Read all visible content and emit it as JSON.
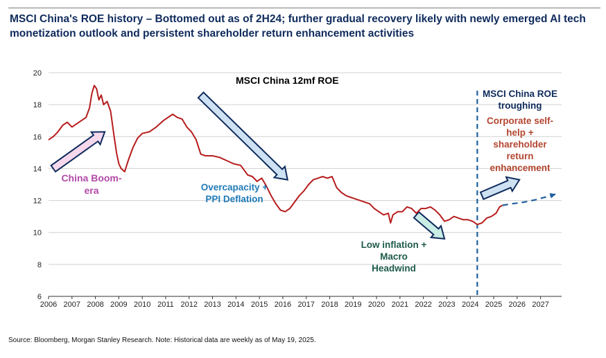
{
  "title": "MSCI China's ROE history – Bottomed out as of 2H24; further gradual recovery likely with newly emerged AI tech monetization outlook and persistent shareholder return enhancement activities",
  "source": "Source: Bloomberg, Morgan Stanley Research. Note: Historical data are weekly as of May 19, 2025.",
  "colors": {
    "line": "#b71c1c",
    "grid": "#d0d0d0",
    "title": "#0f2b5c",
    "projection": "#1f5f9e",
    "arrow_dark_fill": "#cfe2f3",
    "arrow_pink_fill": "#f6d8ec",
    "arrow_teal_fill": "#c9ece5"
  },
  "annotations": {
    "chart_title": "MSCI China 12mf ROE",
    "china_boom": "China Boom-era",
    "overcapacity": "Overcapacity + PPI Deflation",
    "low_inflation": "Low inflation + Macro Headwind",
    "troughing": "MSCI China ROE troughing",
    "corporate": "Corporate self-help + shareholder return enhancement"
  },
  "chart_data": {
    "type": "line",
    "title": "MSCI China 12mf ROE",
    "xlabel": "",
    "ylabel": "",
    "xlim": [
      2006,
      2027.9
    ],
    "ylim": [
      6,
      20
    ],
    "x_ticks": [
      2006,
      2007,
      2008,
      2009,
      2010,
      2011,
      2012,
      2013,
      2014,
      2015,
      2016,
      2017,
      2018,
      2019,
      2020,
      2021,
      2022,
      2023,
      2024,
      2025,
      2026,
      2027
    ],
    "y_ticks": [
      6,
      8,
      10,
      12,
      14,
      16,
      18,
      20
    ],
    "grid": "horizontal",
    "series": [
      {
        "x": [
          2006.0,
          2006.2,
          2006.4,
          2006.6,
          2006.8,
          2007.0,
          2007.2,
          2007.4,
          2007.6,
          2007.75,
          2007.85,
          2007.95,
          2008.05,
          2008.15,
          2008.25,
          2008.35,
          2008.5,
          2008.65,
          2008.8,
          2008.9,
          2009.0,
          2009.1,
          2009.25,
          2009.4,
          2009.6,
          2009.8,
          2010.0,
          2010.3,
          2010.6,
          2010.9,
          2011.1,
          2011.3,
          2011.5,
          2011.7,
          2011.9,
          2012.1,
          2012.3,
          2012.5,
          2012.7,
          2013.0,
          2013.3,
          2013.6,
          2013.9,
          2014.2,
          2014.5,
          2014.7,
          2014.9,
          2015.1,
          2015.3,
          2015.5,
          2015.7,
          2015.9,
          2016.1,
          2016.3,
          2016.5,
          2016.7,
          2016.9,
          2017.1,
          2017.3,
          2017.5,
          2017.7,
          2017.9,
          2018.1,
          2018.3,
          2018.5,
          2018.7,
          2018.9,
          2019.1,
          2019.3,
          2019.5,
          2019.7,
          2019.9,
          2020.1,
          2020.3,
          2020.5,
          2020.6,
          2020.7,
          2020.9,
          2021.1,
          2021.3,
          2021.5,
          2021.7,
          2021.9,
          2022.1,
          2022.3,
          2022.5,
          2022.7,
          2022.9,
          2023.1,
          2023.3,
          2023.5,
          2023.7,
          2023.9,
          2024.1,
          2024.3,
          2024.5,
          2024.7,
          2024.9,
          2025.1,
          2025.25,
          2025.38
        ],
        "values": [
          15.8,
          16.0,
          16.3,
          16.7,
          16.9,
          16.6,
          16.8,
          17.0,
          17.2,
          17.8,
          18.7,
          19.2,
          19.0,
          18.3,
          18.6,
          18.0,
          18.2,
          17.6,
          16.0,
          15.0,
          14.3,
          14.0,
          13.8,
          14.5,
          15.3,
          15.9,
          16.2,
          16.3,
          16.6,
          17.0,
          17.2,
          17.4,
          17.2,
          17.1,
          16.6,
          16.3,
          15.8,
          14.9,
          14.8,
          14.8,
          14.7,
          14.5,
          14.3,
          14.2,
          13.6,
          13.5,
          13.2,
          13.4,
          12.9,
          12.3,
          11.8,
          11.4,
          11.3,
          11.5,
          11.9,
          12.3,
          12.6,
          13.0,
          13.3,
          13.4,
          13.5,
          13.4,
          13.5,
          12.8,
          12.5,
          12.3,
          12.2,
          12.1,
          12.0,
          11.9,
          11.8,
          11.5,
          11.3,
          11.1,
          11.2,
          10.6,
          11.1,
          11.3,
          11.3,
          11.6,
          11.5,
          11.2,
          11.5,
          11.5,
          11.6,
          11.4,
          11.1,
          10.7,
          10.8,
          11.0,
          10.9,
          10.8,
          10.8,
          10.7,
          10.5,
          10.6,
          10.9,
          11.0,
          11.2,
          11.6,
          11.7
        ]
      },
      {
        "x": [
          2025.38,
          2025.8,
          2026.3,
          2026.8,
          2027.3,
          2027.65
        ],
        "values": [
          11.7,
          11.8,
          11.9,
          12.05,
          12.25,
          12.4
        ],
        "style": "dashed"
      }
    ],
    "vertical_marker_x": 2024.3,
    "arrows": [
      {
        "from": [
          2006.2,
          14.0
        ],
        "to": [
          2008.4,
          16.3
        ],
        "style": "pink"
      },
      {
        "from": [
          2012.5,
          18.6
        ],
        "to": [
          2016.2,
          13.3
        ],
        "style": "dark"
      },
      {
        "from": [
          2021.7,
          11.1
        ],
        "to": [
          2022.9,
          9.6
        ],
        "style": "teal"
      },
      {
        "from": [
          2024.5,
          12.3
        ],
        "to": [
          2026.1,
          13.3
        ],
        "style": "dark"
      }
    ]
  }
}
